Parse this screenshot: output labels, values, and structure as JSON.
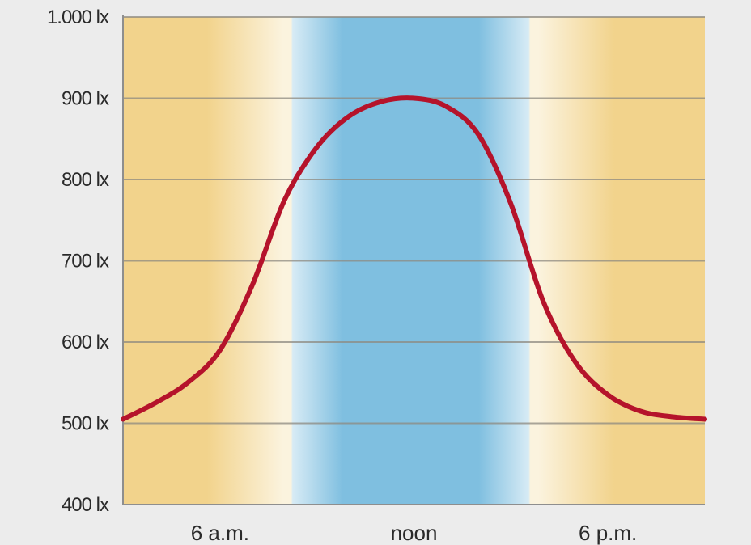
{
  "chart_data": {
    "type": "line",
    "title": "",
    "xlabel": "",
    "ylabel": "",
    "ylim": [
      400,
      1000
    ],
    "yticks": [
      {
        "value": 1000,
        "label": "1.000 lx"
      },
      {
        "value": 900,
        "label": "900 lx"
      },
      {
        "value": 800,
        "label": "800 lx"
      },
      {
        "value": 700,
        "label": "700 lx"
      },
      {
        "value": 600,
        "label": "600 lx"
      },
      {
        "value": 500,
        "label": "500 lx"
      },
      {
        "value": 400,
        "label": "400 lx"
      }
    ],
    "xlim": [
      3,
      21
    ],
    "xticks": [
      {
        "value": 6,
        "label": "6 a.m."
      },
      {
        "value": 12,
        "label": "noon"
      },
      {
        "value": 18,
        "label": "6 p.m."
      }
    ],
    "grid": true,
    "background_bands": [
      {
        "from": 3,
        "to": 8.2,
        "tone": "warm",
        "color": "#f2d38c"
      },
      {
        "from": 8.2,
        "to": 15.6,
        "tone": "cool",
        "color": "#7fbfe0"
      },
      {
        "from": 15.6,
        "to": 21,
        "tone": "warm",
        "color": "#f2d38c"
      }
    ],
    "series": [
      {
        "color": "#b5132b",
        "x": [
          3,
          4,
          5,
          6,
          7,
          8,
          9,
          10,
          11,
          12,
          13,
          14,
          15,
          16,
          17,
          18,
          19,
          20,
          21
        ],
        "y": [
          505,
          525,
          550,
          590,
          670,
          775,
          840,
          878,
          896,
          900,
          890,
          855,
          770,
          650,
          575,
          535,
          515,
          508,
          505
        ]
      }
    ]
  }
}
